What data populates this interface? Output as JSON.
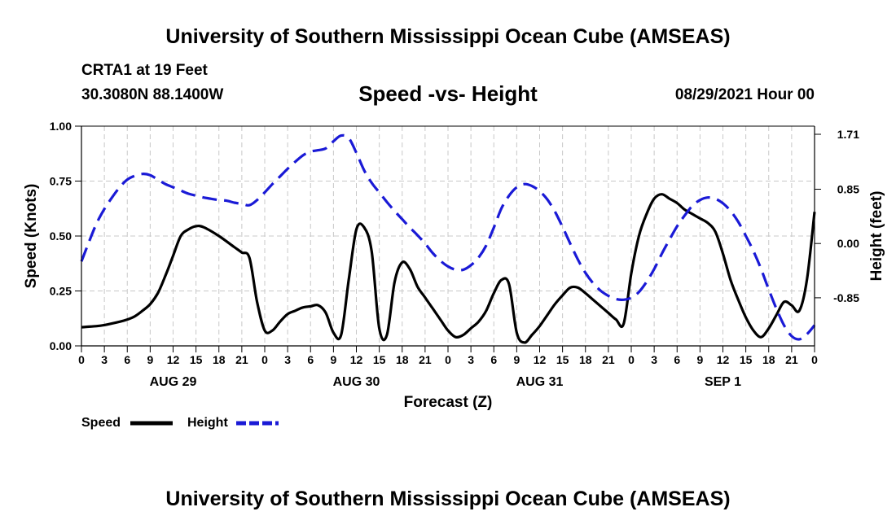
{
  "header": {
    "title": "University of Southern Mississippi Ocean Cube (AMSEAS)",
    "station": "CRTA1 at 19 Feet",
    "coords": "30.3080N  88.1400W",
    "chart_title": "Speed -vs- Height",
    "datetime": "08/29/2021 Hour 00"
  },
  "footer": {
    "title": "University of Southern Mississippi Ocean Cube (AMSEAS)"
  },
  "colors": {
    "speed": "#000000",
    "height": "#1a1ad6",
    "grid": "#c8c8c8"
  },
  "chart_data": {
    "type": "line",
    "title": "Speed -vs- Height",
    "xlabel": "Forecast (Z)",
    "ylabel": "Speed (Knots)",
    "y2label": "Height (feet)",
    "xlim": [
      0,
      96
    ],
    "ylim": [
      0,
      1.0
    ],
    "y2lim": [
      -1.6031,
      1.8375
    ],
    "yticks": [
      0,
      0.25,
      0.5,
      0.75,
      1.0
    ],
    "ytick_labels": [
      "0.00",
      "0.25",
      "0.50",
      "0.75",
      "1.00"
    ],
    "y2ticks": [
      -0.85,
      0,
      0.85,
      1.71
    ],
    "y2tick_labels": [
      "-0.85",
      "0.00",
      "0.85",
      "1.71"
    ],
    "xticks": [
      0,
      3,
      6,
      9,
      12,
      15,
      18,
      21,
      24,
      27,
      30,
      33,
      36,
      39,
      42,
      45,
      48,
      51,
      54,
      57,
      60,
      63,
      66,
      69,
      72,
      75,
      78,
      81,
      84,
      87,
      90,
      93,
      96
    ],
    "xtick_labels": [
      "0",
      "3",
      "6",
      "9",
      "12",
      "15",
      "18",
      "21",
      "0",
      "3",
      "6",
      "9",
      "12",
      "15",
      "18",
      "21",
      "0",
      "3",
      "6",
      "9",
      "12",
      "15",
      "18",
      "21",
      "0",
      "3",
      "6",
      "9",
      "12",
      "15",
      "18",
      "21",
      "0"
    ],
    "day_labels": [
      {
        "x": 12,
        "label": "AUG 29"
      },
      {
        "x": 36,
        "label": "AUG 30"
      },
      {
        "x": 60,
        "label": "AUG 31"
      },
      {
        "x": 84,
        "label": "SEP 1"
      }
    ],
    "grid": true,
    "legend_position": "bottom-left",
    "series": [
      {
        "name": "Speed",
        "axis": "left",
        "style": "solid",
        "x": [
          0,
          2,
          3,
          5,
          6,
          7,
          8,
          9,
          10,
          11,
          12,
          13,
          14,
          15,
          16,
          18,
          20,
          21,
          22,
          23,
          24,
          25,
          26,
          27,
          28,
          29,
          30,
          31,
          32,
          33,
          34,
          35,
          36,
          37,
          38,
          39,
          40,
          41,
          42,
          43,
          44,
          45,
          46,
          47,
          48,
          49,
          50,
          51,
          52,
          53,
          54,
          55,
          56,
          57,
          58,
          59,
          60,
          61,
          62,
          63,
          64,
          65,
          66,
          67,
          68,
          69,
          70,
          71,
          72,
          73,
          74,
          75,
          76,
          77,
          78,
          79,
          80,
          81,
          82,
          83,
          84,
          85,
          86,
          87,
          88,
          89,
          90,
          91,
          92,
          93,
          94,
          95,
          96
        ],
        "y": [
          0.085,
          0.09,
          0.095,
          0.11,
          0.12,
          0.135,
          0.16,
          0.19,
          0.24,
          0.32,
          0.41,
          0.5,
          0.53,
          0.545,
          0.54,
          0.5,
          0.45,
          0.425,
          0.4,
          0.2,
          0.07,
          0.07,
          0.11,
          0.145,
          0.16,
          0.175,
          0.18,
          0.185,
          0.15,
          0.06,
          0.05,
          0.3,
          0.53,
          0.54,
          0.43,
          0.08,
          0.05,
          0.29,
          0.38,
          0.35,
          0.27,
          0.22,
          0.17,
          0.12,
          0.07,
          0.04,
          0.05,
          0.08,
          0.11,
          0.16,
          0.24,
          0.3,
          0.28,
          0.06,
          0.015,
          0.05,
          0.09,
          0.14,
          0.19,
          0.23,
          0.265,
          0.265,
          0.24,
          0.21,
          0.18,
          0.15,
          0.12,
          0.1,
          0.33,
          0.5,
          0.6,
          0.67,
          0.69,
          0.67,
          0.65,
          0.62,
          0.6,
          0.58,
          0.56,
          0.52,
          0.42,
          0.3,
          0.21,
          0.13,
          0.07,
          0.04,
          0.08,
          0.14,
          0.2,
          0.185,
          0.16,
          0.3,
          0.61
        ]
      },
      {
        "name": "Height",
        "axis": "right",
        "style": "dashed",
        "x": [
          0,
          1,
          2,
          3,
          4,
          5,
          6,
          7,
          8,
          9,
          10,
          11,
          12,
          13,
          14,
          15,
          16,
          17,
          18,
          19,
          20,
          21,
          22,
          23,
          24,
          25,
          26,
          27,
          28,
          29,
          30,
          31,
          32,
          33,
          34,
          35,
          36,
          37,
          38,
          39,
          40,
          41,
          42,
          43,
          44,
          45,
          46,
          47,
          48,
          49,
          50,
          51,
          52,
          53,
          54,
          55,
          56,
          57,
          58,
          59,
          60,
          61,
          62,
          63,
          64,
          65,
          66,
          67,
          68,
          69,
          70,
          71,
          72,
          73,
          74,
          75,
          76,
          77,
          78,
          79,
          80,
          81,
          82,
          83,
          84,
          85,
          86,
          87,
          88,
          89,
          90,
          91,
          92,
          93,
          94,
          95,
          96
        ],
        "y": [
          -0.28,
          0.03,
          0.32,
          0.54,
          0.72,
          0.88,
          1.0,
          1.06,
          1.09,
          1.07,
          1.0,
          0.93,
          0.88,
          0.83,
          0.78,
          0.75,
          0.72,
          0.7,
          0.68,
          0.67,
          0.64,
          0.62,
          0.6,
          0.68,
          0.8,
          0.93,
          1.05,
          1.17,
          1.28,
          1.38,
          1.44,
          1.46,
          1.49,
          1.6,
          1.69,
          1.65,
          1.42,
          1.15,
          0.95,
          0.8,
          0.65,
          0.51,
          0.38,
          0.25,
          0.13,
          0.0,
          -0.15,
          -0.27,
          -0.36,
          -0.41,
          -0.41,
          -0.34,
          -0.22,
          -0.03,
          0.25,
          0.55,
          0.75,
          0.88,
          0.93,
          0.9,
          0.82,
          0.69,
          0.5,
          0.26,
          0.0,
          -0.25,
          -0.46,
          -0.62,
          -0.74,
          -0.82,
          -0.87,
          -0.88,
          -0.85,
          -0.76,
          -0.6,
          -0.4,
          -0.16,
          0.06,
          0.27,
          0.44,
          0.59,
          0.68,
          0.72,
          0.7,
          0.63,
          0.51,
          0.34,
          0.12,
          -0.12,
          -0.4,
          -0.72,
          -1.02,
          -1.28,
          -1.45,
          -1.5,
          -1.42,
          -1.28
        ]
      }
    ]
  }
}
